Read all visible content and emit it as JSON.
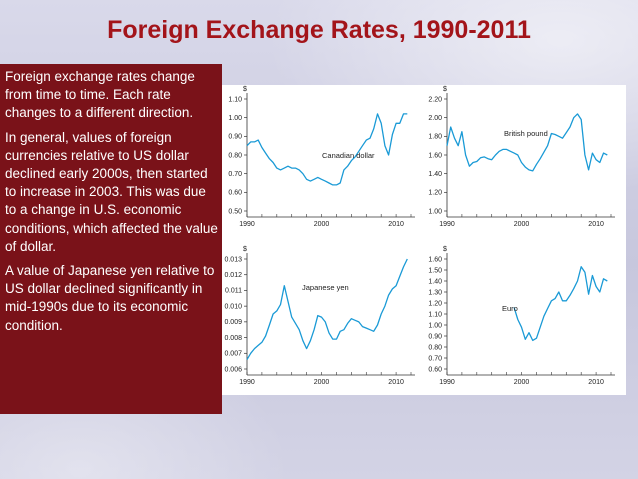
{
  "slide": {
    "title": "Foreign Exchange Rates, 1990-2011",
    "paragraphs": [
      "Foreign exchange rates change from time to time. Each rate changes to a different direction.",
      "In general, values of foreign currencies relative to US dollar declined early 2000s, then started to increase in 2003. This was due to a change in U.S. economic conditions, which affected the value of dollar.",
      "A value of Japanese yen relative to US dollar declined significantly in mid-1990s due to its economic condition."
    ]
  },
  "chart_data": [
    {
      "type": "line",
      "ylabel": "$",
      "annotation": "Canadian dollar",
      "xlim": [
        1990,
        2012
      ],
      "x_ticks": [
        "1990",
        "2000",
        "2010"
      ],
      "ylim": [
        0.5,
        1.1
      ],
      "y_ticks": [
        "0.50",
        "0.60",
        "0.70",
        "0.80",
        "0.90",
        "1.00",
        "1.10"
      ],
      "color": "#1a9ad6",
      "series": [
        {
          "x": [
            1990,
            1990.5,
            1991,
            1991.5,
            1992,
            1992.5,
            1993,
            1993.5,
            1994,
            1994.5,
            1995,
            1995.5,
            1996,
            1996.5,
            1997,
            1997.5,
            1998,
            1998.5,
            1999,
            1999.5,
            2000,
            2000.5,
            2001,
            2001.5,
            2002,
            2002.5,
            2003,
            2003.5,
            2004,
            2004.5,
            2005,
            2005.5,
            2006,
            2006.5,
            2007,
            2007.5,
            2008,
            2008.5,
            2009,
            2009.5,
            2010,
            2010.5,
            2011,
            2011.5
          ],
          "y": [
            0.85,
            0.87,
            0.87,
            0.88,
            0.84,
            0.81,
            0.78,
            0.76,
            0.73,
            0.72,
            0.73,
            0.74,
            0.73,
            0.73,
            0.72,
            0.7,
            0.67,
            0.66,
            0.67,
            0.68,
            0.67,
            0.66,
            0.65,
            0.64,
            0.64,
            0.65,
            0.72,
            0.74,
            0.77,
            0.79,
            0.82,
            0.85,
            0.88,
            0.89,
            0.94,
            1.02,
            0.97,
            0.85,
            0.8,
            0.91,
            0.97,
            0.97,
            1.02,
            1.02
          ]
        }
      ]
    },
    {
      "type": "line",
      "ylabel": "$",
      "annotation": "British pound",
      "xlim": [
        1990,
        2012
      ],
      "x_ticks": [
        "1990",
        "2000",
        "2010"
      ],
      "ylim": [
        1.0,
        2.2
      ],
      "y_ticks": [
        "1.00",
        "1.20",
        "1.40",
        "1.60",
        "1.80",
        "2.00",
        "2.20"
      ],
      "color": "#1a9ad6",
      "series": [
        {
          "x": [
            1990,
            1990.5,
            1991,
            1991.5,
            1992,
            1992.5,
            1993,
            1993.5,
            1994,
            1994.5,
            1995,
            1995.5,
            1996,
            1996.5,
            1997,
            1997.5,
            1998,
            1998.5,
            1999,
            1999.5,
            2000,
            2000.5,
            2001,
            2001.5,
            2002,
            2002.5,
            2003,
            2003.5,
            2004,
            2004.5,
            2005,
            2005.5,
            2006,
            2006.5,
            2007,
            2007.5,
            2008,
            2008.5,
            2009,
            2009.5,
            2010,
            2010.5,
            2011,
            2011.5
          ],
          "y": [
            1.7,
            1.9,
            1.78,
            1.7,
            1.85,
            1.6,
            1.48,
            1.52,
            1.53,
            1.57,
            1.58,
            1.56,
            1.55,
            1.6,
            1.64,
            1.66,
            1.66,
            1.64,
            1.62,
            1.6,
            1.52,
            1.47,
            1.44,
            1.43,
            1.5,
            1.56,
            1.63,
            1.7,
            1.83,
            1.82,
            1.8,
            1.78,
            1.84,
            1.9,
            2.0,
            2.04,
            1.98,
            1.6,
            1.44,
            1.62,
            1.55,
            1.52,
            1.62,
            1.6
          ]
        }
      ]
    },
    {
      "type": "line",
      "ylabel": "$",
      "annotation": "Japanese yen",
      "xlim": [
        1990,
        2012
      ],
      "x_ticks": [
        "1990",
        "2000",
        "2010"
      ],
      "ylim": [
        0.006,
        0.013
      ],
      "y_ticks": [
        "0.006",
        "0.007",
        "0.008",
        "0.009",
        "0.010",
        "0.011",
        "0.012",
        "0.013"
      ],
      "color": "#1a9ad6",
      "series": [
        {
          "x": [
            1990,
            1990.5,
            1991,
            1991.5,
            1992,
            1992.5,
            1993,
            1993.5,
            1994,
            1994.5,
            1995,
            1995.5,
            1996,
            1996.5,
            1997,
            1997.5,
            1998,
            1998.5,
            1999,
            1999.5,
            2000,
            2000.5,
            2001,
            2001.5,
            2002,
            2002.5,
            2003,
            2003.5,
            2004,
            2004.5,
            2005,
            2005.5,
            2006,
            2006.5,
            2007,
            2007.5,
            2008,
            2008.5,
            2009,
            2009.5,
            2010,
            2010.5,
            2011,
            2011.5
          ],
          "y": [
            0.0066,
            0.007,
            0.0073,
            0.0075,
            0.0077,
            0.0081,
            0.0088,
            0.0095,
            0.0097,
            0.0101,
            0.0113,
            0.0103,
            0.0093,
            0.0089,
            0.0085,
            0.0078,
            0.0073,
            0.0078,
            0.0085,
            0.0094,
            0.0093,
            0.009,
            0.0083,
            0.0079,
            0.0079,
            0.0084,
            0.0085,
            0.0089,
            0.0092,
            0.0091,
            0.009,
            0.0087,
            0.0086,
            0.0085,
            0.0084,
            0.0088,
            0.0095,
            0.01,
            0.0107,
            0.0111,
            0.0113,
            0.0119,
            0.0125,
            0.013
          ]
        }
      ]
    },
    {
      "type": "line",
      "ylabel": "$",
      "annotation": "Euro",
      "xlim": [
        1990,
        2012
      ],
      "x_ticks": [
        "1990",
        "2000",
        "2010"
      ],
      "ylim": [
        0.6,
        1.6
      ],
      "y_ticks": [
        "0.60",
        "0.70",
        "0.80",
        "0.90",
        "1.00",
        "1.10",
        "1.20",
        "1.30",
        "1.40",
        "1.50",
        "1.60"
      ],
      "color": "#1a9ad6",
      "series": [
        {
          "x": [
            1999,
            1999.5,
            2000,
            2000.5,
            2001,
            2001.5,
            2002,
            2002.5,
            2003,
            2003.5,
            2004,
            2004.5,
            2005,
            2005.5,
            2006,
            2006.5,
            2007,
            2007.5,
            2008,
            2008.5,
            2009,
            2009.5,
            2010,
            2010.5,
            2011,
            2011.5
          ],
          "y": [
            1.16,
            1.05,
            0.98,
            0.87,
            0.93,
            0.86,
            0.88,
            0.98,
            1.08,
            1.15,
            1.22,
            1.24,
            1.3,
            1.22,
            1.22,
            1.27,
            1.33,
            1.4,
            1.53,
            1.48,
            1.28,
            1.45,
            1.35,
            1.3,
            1.42,
            1.4
          ]
        }
      ]
    }
  ]
}
